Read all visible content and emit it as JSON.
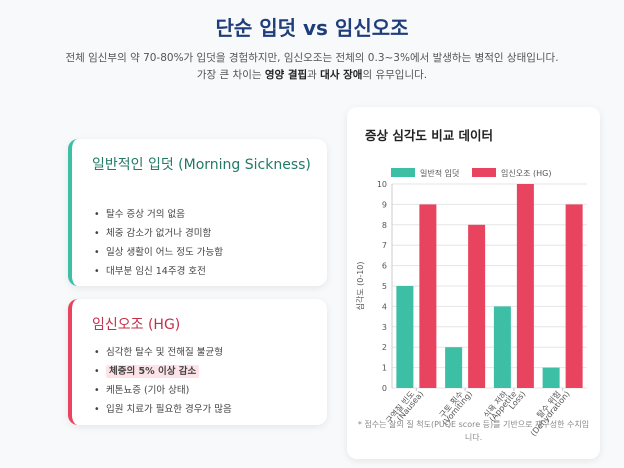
{
  "header": {
    "title": "단순 입덧 vs 임신오조",
    "subtitle_line1": "전체 임신부의 약 70-80%가 입덧을 경험하지만, 임신오조는 전체의 0.3~3%에서 발생하는 병적인 상태입니다.",
    "subtitle_line2_pre": "가장 큰 차이는 ",
    "subtitle_line2_b1": "영양 결핍",
    "subtitle_line2_mid": "과 ",
    "subtitle_line2_b2": "대사 장애",
    "subtitle_line2_post": "의 유무입니다."
  },
  "normal_card": {
    "title": "일반적인 입덧 (Morning Sickness)",
    "items": [
      "탈수 증상 거의 없음",
      "체중 감소가 없거나 경미함",
      "일상 생활이 어느 정도 가능함",
      "대부분 임신 14주경 호전"
    ]
  },
  "hg_card": {
    "title": "임신오조 (HG)",
    "items": [
      "심각한 탈수 및 전해질 불균형",
      "체중의 5% 이상 감소",
      "케톤뇨증 (기아 상태)",
      "입원 치료가 필요한 경우가 많음"
    ]
  },
  "chart_card": {
    "title": "증상 심각도 비교 데이터",
    "footnote": "* 점수는 삶의 질 척도(PUQE score 등)를 기반으로 재구성한 수치입니다."
  },
  "colors": {
    "normal": "#3dbfa6",
    "hg": "#e8445f"
  },
  "chart_data": {
    "type": "bar",
    "categories": [
      [
        "구역질 빈도",
        "(Nausea)"
      ],
      [
        "구토 횟수",
        "(Vomiting)"
      ],
      [
        "식욕 저하",
        "(Appetite",
        "Loss)"
      ],
      [
        "탈수 위험",
        "(Dehydration)"
      ]
    ],
    "series": [
      {
        "name": "일반적 입덧",
        "values": [
          5,
          2,
          4,
          1
        ]
      },
      {
        "name": "임신오조 (HG)",
        "values": [
          9,
          8,
          10,
          9
        ]
      }
    ],
    "ylabel": "심각도 (0-10)",
    "ylim": [
      0,
      10
    ],
    "yticks": [
      0,
      1,
      2,
      3,
      4,
      5,
      6,
      7,
      8,
      9,
      10
    ],
    "legend": "top",
    "grid": true
  }
}
